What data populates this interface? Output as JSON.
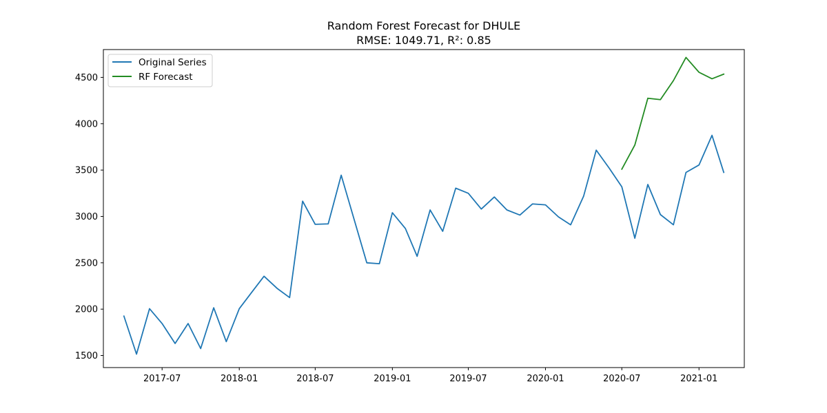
{
  "chart_data": {
    "type": "line",
    "title": "Random Forest Forecast for DHULE",
    "subtitle": "RMSE: 1049.71, R²: 0.85",
    "xlabel": "",
    "ylabel": "",
    "x_range": [
      "2017-02-11",
      "2021-04-19"
    ],
    "ylim": [
      1370,
      4800
    ],
    "x_ticks": [
      {
        "date": "2017-07-01",
        "label": "2017-07"
      },
      {
        "date": "2018-01-01",
        "label": "2018-01"
      },
      {
        "date": "2018-07-01",
        "label": "2018-07"
      },
      {
        "date": "2019-01-01",
        "label": "2019-01"
      },
      {
        "date": "2019-07-01",
        "label": "2019-07"
      },
      {
        "date": "2020-01-01",
        "label": "2020-01"
      },
      {
        "date": "2020-07-01",
        "label": "2020-07"
      },
      {
        "date": "2021-01-01",
        "label": "2021-01"
      }
    ],
    "y_ticks": [
      1500,
      2000,
      2500,
      3000,
      3500,
      4000,
      4500
    ],
    "grid": false,
    "legend_position": "top-left",
    "series": [
      {
        "name": "Original Series",
        "color": "#1f77b4",
        "points": [
          [
            "2017-04-01",
            1925
          ],
          [
            "2017-05-01",
            1515
          ],
          [
            "2017-06-01",
            2005
          ],
          [
            "2017-07-01",
            1845
          ],
          [
            "2017-08-01",
            1630
          ],
          [
            "2017-09-01",
            1845
          ],
          [
            "2017-10-01",
            1575
          ],
          [
            "2017-11-01",
            2015
          ],
          [
            "2017-12-01",
            1650
          ],
          [
            "2018-01-01",
            2005
          ],
          [
            "2018-02-01",
            2190
          ],
          [
            "2018-03-01",
            2355
          ],
          [
            "2018-04-01",
            2225
          ],
          [
            "2018-05-01",
            2125
          ],
          [
            "2018-06-01",
            3165
          ],
          [
            "2018-07-01",
            2915
          ],
          [
            "2018-08-01",
            2920
          ],
          [
            "2018-09-01",
            3445
          ],
          [
            "2018-10-01",
            2980
          ],
          [
            "2018-11-01",
            2500
          ],
          [
            "2018-12-01",
            2490
          ],
          [
            "2019-01-01",
            3040
          ],
          [
            "2019-02-01",
            2870
          ],
          [
            "2019-03-01",
            2570
          ],
          [
            "2019-04-01",
            3070
          ],
          [
            "2019-05-01",
            2840
          ],
          [
            "2019-06-01",
            3305
          ],
          [
            "2019-07-01",
            3250
          ],
          [
            "2019-08-01",
            3080
          ],
          [
            "2019-09-01",
            3210
          ],
          [
            "2019-10-01",
            3070
          ],
          [
            "2019-11-01",
            3015
          ],
          [
            "2019-12-01",
            3135
          ],
          [
            "2020-01-01",
            3125
          ],
          [
            "2020-02-01",
            2995
          ],
          [
            "2020-03-01",
            2910
          ],
          [
            "2020-04-01",
            3220
          ],
          [
            "2020-05-01",
            3715
          ],
          [
            "2020-06-01",
            3520
          ],
          [
            "2020-07-01",
            3320
          ],
          [
            "2020-08-01",
            2765
          ],
          [
            "2020-09-01",
            3345
          ],
          [
            "2020-10-01",
            3020
          ],
          [
            "2020-11-01",
            2910
          ],
          [
            "2020-12-01",
            3475
          ],
          [
            "2021-01-01",
            3555
          ],
          [
            "2021-02-01",
            3875
          ],
          [
            "2021-03-01",
            3475
          ]
        ]
      },
      {
        "name": "RF Forecast",
        "color": "#228b22",
        "points": [
          [
            "2020-07-01",
            3510
          ],
          [
            "2020-08-01",
            3770
          ],
          [
            "2020-09-01",
            4275
          ],
          [
            "2020-10-01",
            4260
          ],
          [
            "2020-11-01",
            4465
          ],
          [
            "2020-12-01",
            4715
          ],
          [
            "2021-01-01",
            4555
          ],
          [
            "2021-02-01",
            4485
          ],
          [
            "2021-03-01",
            4535
          ]
        ]
      }
    ]
  }
}
